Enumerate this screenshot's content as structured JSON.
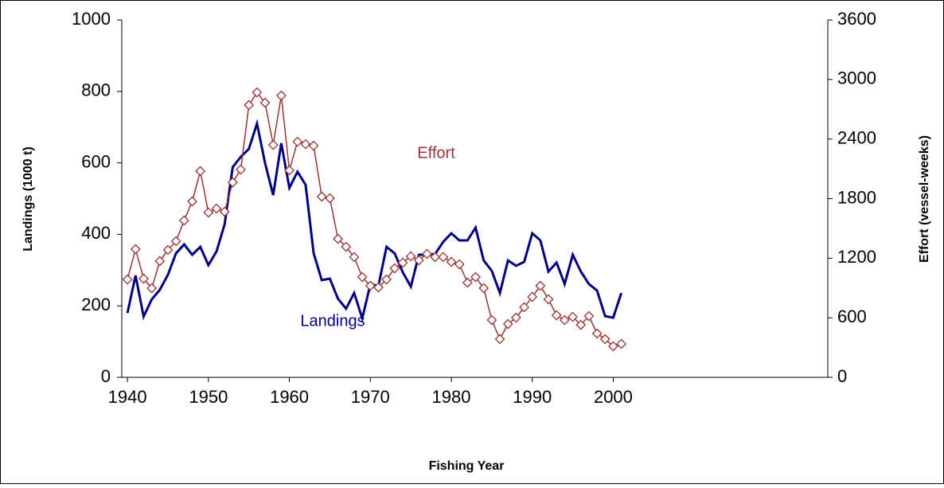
{
  "chart_data": {
    "type": "line",
    "xlabel": "Fishing Year",
    "ylabel": "Landings (1000 t)",
    "y2label": "Effort (vessel-weeks)",
    "x": [
      1940,
      1941,
      1942,
      1943,
      1944,
      1945,
      1946,
      1947,
      1948,
      1949,
      1950,
      1951,
      1952,
      1953,
      1954,
      1955,
      1956,
      1957,
      1958,
      1959,
      1960,
      1961,
      1962,
      1963,
      1964,
      1965,
      1966,
      1967,
      1968,
      1969,
      1970,
      1971,
      1972,
      1973,
      1974,
      1975,
      1976,
      1977,
      1978,
      1979,
      1980,
      1981,
      1982,
      1983,
      1984,
      1985,
      1986,
      1987,
      1988,
      1989,
      1990,
      1991,
      1992,
      1993,
      1994,
      1995,
      1996,
      1997,
      1998,
      1999,
      2000,
      2001
    ],
    "series": [
      {
        "name": "Landings",
        "color": "#000080",
        "marker": "none",
        "values": [
          180,
          285,
          170,
          218,
          245,
          287,
          347,
          372,
          343,
          365,
          314,
          352,
          428,
          588,
          617,
          639,
          710,
          599,
          510,
          655,
          530,
          575,
          539,
          347,
          272,
          276,
          220,
          192,
          236,
          165,
          260,
          256,
          365,
          347,
          294,
          254,
          343,
          343,
          345,
          379,
          403,
          383,
          383,
          419,
          327,
          298,
          236,
          327,
          312,
          323,
          403,
          383,
          296,
          321,
          261,
          343,
          296,
          261,
          243,
          171,
          167,
          236
        ]
      },
      {
        "name": "Effort",
        "color": "#993333",
        "marker": "diamond",
        "axis": "y2",
        "values": [
          986,
          1291,
          994,
          898,
          1171,
          1283,
          1371,
          1580,
          1772,
          2077,
          1660,
          1700,
          1668,
          1964,
          2093,
          2742,
          2870,
          2766,
          2341,
          2838,
          2085,
          2373,
          2349,
          2333,
          1820,
          1804,
          1395,
          1315,
          1211,
          1010,
          922,
          906,
          986,
          1098,
          1155,
          1219,
          1179,
          1243,
          1211,
          1211,
          1163,
          1139,
          954,
          1010,
          898,
          577,
          385,
          537,
          601,
          706,
          810,
          922,
          786,
          625,
          577,
          609,
          529,
          617,
          441,
          385,
          313,
          337
        ]
      }
    ],
    "xlim": [
      1939.3,
      2026.5
    ],
    "xticks": [
      1940,
      1950,
      1960,
      1970,
      1980,
      1990,
      2000
    ],
    "ylim": [
      0,
      1000
    ],
    "yticks": [
      0,
      200,
      400,
      600,
      800,
      1000
    ],
    "y2lim": [
      0,
      3600
    ],
    "y2ticks": [
      0,
      600,
      1200,
      1800,
      2400,
      3000,
      3600
    ],
    "grid": false
  }
}
